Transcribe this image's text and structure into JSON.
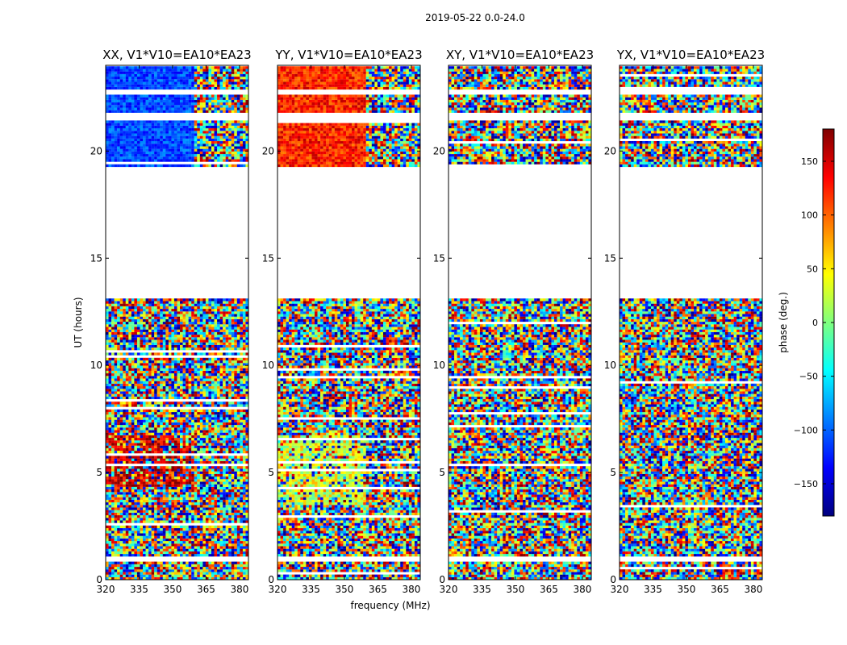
{
  "chart_data": {
    "type": "heatmap",
    "suptitle": "2019-05-22 0.0-24.0",
    "xlabel": "frequency (MHz)",
    "ylabel": "UT (hours)",
    "x_range": [
      320,
      384
    ],
    "x_ticks": [
      320,
      335,
      350,
      365,
      380
    ],
    "y_range": [
      0,
      24
    ],
    "y_ticks": [
      0,
      5,
      10,
      15,
      20
    ],
    "colorbar": {
      "label": "phase (deg.)",
      "range": [
        -180,
        180
      ],
      "ticks": [
        150,
        100,
        50,
        0,
        -50,
        -100,
        -150
      ],
      "tick_labels": [
        "150",
        "100",
        "50",
        "0",
        "−50",
        "−100",
        "−150"
      ],
      "colormap": "jet",
      "colors": [
        "#00007f",
        "#0000ff",
        "#007fff",
        "#00ffff",
        "#7fff7f",
        "#ffff00",
        "#ff7f00",
        "#ff0000",
        "#7f0000"
      ]
    },
    "data_gaps_hours": [
      [
        13.1,
        19.3
      ],
      [
        21.45,
        21.85
      ],
      [
        22.7,
        22.9
      ],
      [
        0.9,
        1.1
      ]
    ],
    "panels": [
      {
        "title": "XX, V1*V10=EA10*EA23",
        "polarization": "XX",
        "trend": "coherent phase near -100 deg at 19-24 h, near +150 deg at 4.5-6.5 h, coherent below 362 MHz"
      },
      {
        "title": "YY, V1*V10=EA10*EA23",
        "polarization": "YY",
        "trend": "coherent phase near +120 deg at 19-24 h, near +30 deg at 3.5-6.5 h, coherent below 362 MHz"
      },
      {
        "title": "XY, V1*V10=EA10*EA23",
        "polarization": "XY",
        "trend": "noise-like phase"
      },
      {
        "title": "YX, V1*V10=EA10*EA23",
        "polarization": "YX",
        "trend": "noise-like phase"
      }
    ]
  }
}
